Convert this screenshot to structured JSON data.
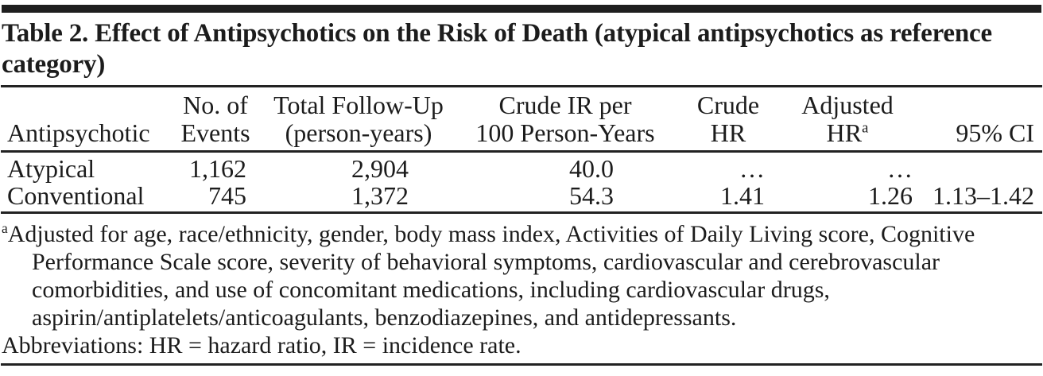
{
  "colors": {
    "text": "#1c1c1c",
    "rule": "#222222",
    "bar": "#1f1f1f",
    "bg": "#ffffff"
  },
  "title": "Table 2. Effect of Antipsychotics on the Risk of Death (atypical antipsychotics as reference category)",
  "table": {
    "columns": [
      {
        "line1": "",
        "line2": "Antipsychotic"
      },
      {
        "line1": "No. of",
        "line2": "Events"
      },
      {
        "line1": "Total Follow-Up",
        "line2": "(person-years)"
      },
      {
        "line1": "Crude IR per",
        "line2": "100 Person-Years"
      },
      {
        "line1": "Crude",
        "line2": "HR"
      },
      {
        "line1": "Adjusted",
        "line2": "HR",
        "sup": "a"
      },
      {
        "line1": "",
        "line2": "95% CI"
      }
    ],
    "rows": [
      {
        "antipsychotic": "Atypical",
        "events": "1,162",
        "followup": "2,904",
        "crude_ir": "40.0",
        "crude_hr": "…",
        "adjusted_hr": "…",
        "ci": ""
      },
      {
        "antipsychotic": "Conventional",
        "events": "745",
        "followup": "1,372",
        "crude_ir": "54.3",
        "crude_hr": "1.41",
        "adjusted_hr": "1.26",
        "ci": "1.13–1.42"
      }
    ]
  },
  "footnotes": {
    "marker": "a",
    "adjusted": "Adjusted for age, race/ethnicity, gender, body mass index, Activities of Daily Living score, Cognitive Performance Scale score, severity of behavioral symptoms, cardiovascular and cerebrovascular comorbidities, and use of concomitant medications, including cardiovascular drugs, aspirin/antiplatelets/anticoagulants, benzodiazepines, and antidepressants.",
    "abbreviations": "Abbreviations: HR = hazard ratio, IR = incidence rate."
  }
}
